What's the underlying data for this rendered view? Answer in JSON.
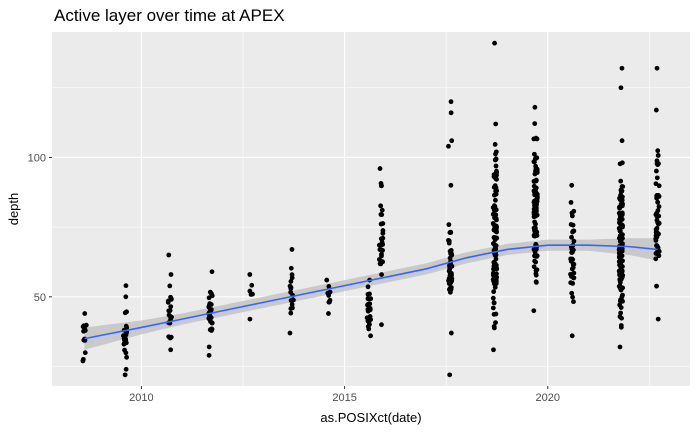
{
  "chart_data": {
    "type": "scatter",
    "title": "Active layer over time at APEX",
    "xlabel": "as.POSIXct(date)",
    "ylabel": "depth",
    "x_ticks": [
      2010,
      2015,
      2020
    ],
    "y_ticks": [
      50,
      100
    ],
    "xlim": [
      2007.8,
      2023.5
    ],
    "ylim": [
      18,
      145
    ],
    "grid": true,
    "colors": {
      "panel": "#ebebeb",
      "grid_major": "#ffffff",
      "points": "#000000",
      "smooth_line": "#3366ff",
      "ribbon": "#bdbdbd"
    },
    "clusters": [
      {
        "x": 2008.6,
        "n": 14,
        "ymin": 27,
        "ymax": 44,
        "outliers": []
      },
      {
        "x": 2009.6,
        "n": 22,
        "ymin": 24,
        "ymax": 50,
        "outliers": [
          22,
          54
        ]
      },
      {
        "x": 2010.7,
        "n": 18,
        "ymin": 31,
        "ymax": 58,
        "outliers": [
          65
        ]
      },
      {
        "x": 2011.7,
        "n": 24,
        "ymin": 32,
        "ymax": 59,
        "outliers": [
          29
        ]
      },
      {
        "x": 2012.7,
        "n": 4,
        "ymin": 42,
        "ymax": 58,
        "outliers": []
      },
      {
        "x": 2013.7,
        "n": 15,
        "ymin": 37,
        "ymax": 67,
        "outliers": []
      },
      {
        "x": 2014.6,
        "n": 7,
        "ymin": 44,
        "ymax": 56,
        "outliers": []
      },
      {
        "x": 2015.6,
        "n": 24,
        "ymin": 36,
        "ymax": 56,
        "outliers": []
      },
      {
        "x": 2015.9,
        "n": 28,
        "ymin": 40,
        "ymax": 96,
        "outliers": []
      },
      {
        "x": 2017.6,
        "n": 38,
        "ymin": 37,
        "ymax": 90,
        "outliers": [
          22,
          116,
          120,
          104,
          106
        ]
      },
      {
        "x": 2018.7,
        "n": 110,
        "ymin": 31,
        "ymax": 112,
        "outliers": [
          141
        ]
      },
      {
        "x": 2019.7,
        "n": 110,
        "ymin": 45,
        "ymax": 118,
        "outliers": []
      },
      {
        "x": 2020.6,
        "n": 36,
        "ymin": 36,
        "ymax": 90,
        "outliers": []
      },
      {
        "x": 2021.8,
        "n": 120,
        "ymin": 32,
        "ymax": 106,
        "outliers": [
          125,
          132
        ]
      },
      {
        "x": 2022.7,
        "n": 55,
        "ymin": 42,
        "ymax": 117,
        "outliers": [
          132
        ]
      }
    ],
    "smooth": {
      "x": [
        2008.6,
        2010.0,
        2011.0,
        2012.0,
        2013.0,
        2014.0,
        2015.0,
        2016.0,
        2017.0,
        2018.0,
        2019.0,
        2020.0,
        2021.0,
        2022.0,
        2022.7
      ],
      "y": [
        35,
        39,
        42,
        45,
        48,
        51,
        54,
        57,
        60,
        64,
        67,
        68.5,
        68.5,
        68,
        67
      ],
      "se": [
        4,
        2.5,
        2,
        2,
        2,
        2,
        2,
        2,
        2,
        2,
        2,
        2,
        2,
        3,
        4
      ]
    }
  }
}
